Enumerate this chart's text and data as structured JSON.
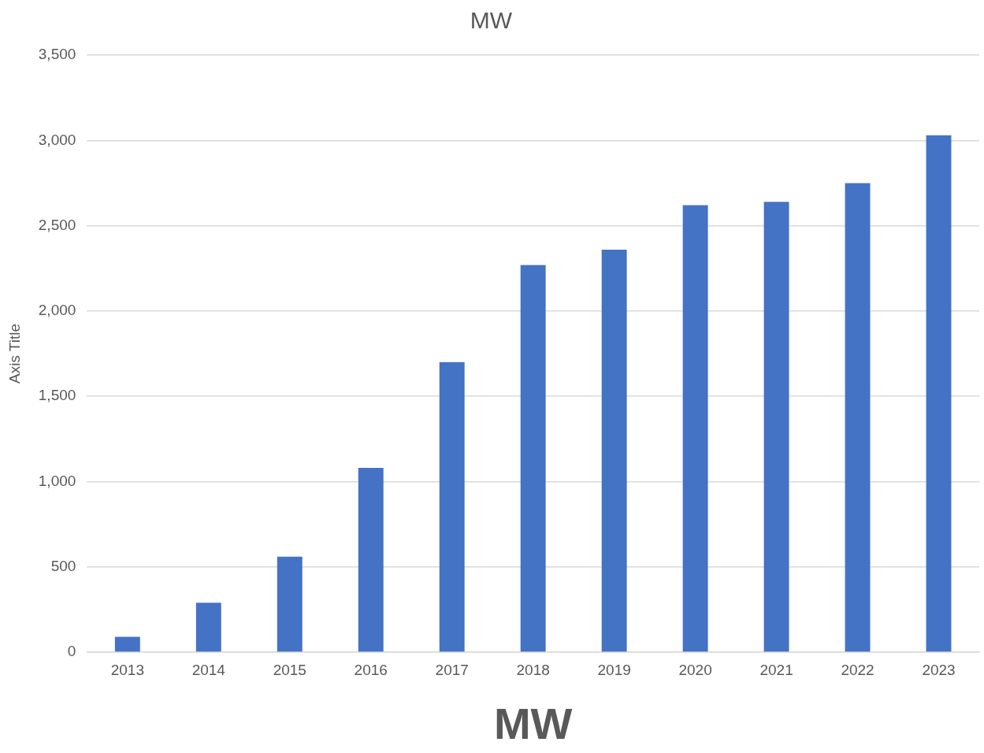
{
  "chart_data": {
    "type": "bar",
    "title": "MW",
    "xlabel": "MW",
    "ylabel": "Axis Title",
    "categories": [
      "2013",
      "2014",
      "2015",
      "2016",
      "2017",
      "2018",
      "2019",
      "2020",
      "2021",
      "2022",
      "2023"
    ],
    "values": [
      90,
      290,
      560,
      1080,
      1700,
      2270,
      2360,
      2620,
      2640,
      2750,
      3030
    ],
    "color": "#4472c4",
    "ylim": [
      0,
      3500
    ],
    "yticks": [
      {
        "value": 0,
        "label": "0"
      },
      {
        "value": 500,
        "label": "500"
      },
      {
        "value": 1000,
        "label": "1,000"
      },
      {
        "value": 1500,
        "label": "1,500"
      },
      {
        "value": 2000,
        "label": "2,000"
      },
      {
        "value": 2500,
        "label": "2,500"
      },
      {
        "value": 3000,
        "label": "3,000"
      },
      {
        "value": 3500,
        "label": "3,500"
      }
    ],
    "grid": "y",
    "legend": false
  }
}
